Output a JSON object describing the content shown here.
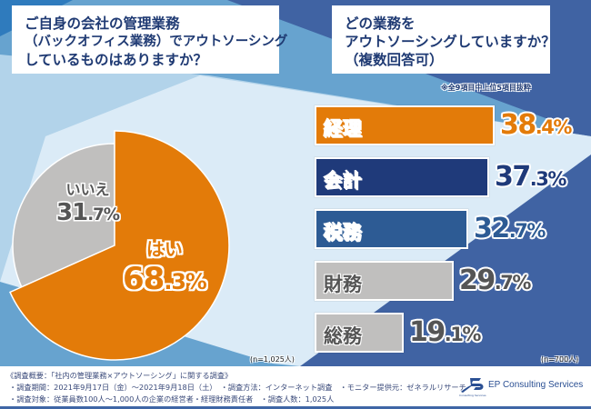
{
  "colors": {
    "orange": "#e37b09",
    "navy": "#1f3a7a",
    "mid_blue": "#2d5b94",
    "gray": "#c0bfbe",
    "gray_text": "#555555",
    "bg_dark": "#4063a3",
    "bg_mid": "#67a3cf",
    "bg_light": "#b2d3ea",
    "bg_pale": "#dbebf7"
  },
  "questions": {
    "left": {
      "lines": [
        "ご自身の会社の管理業務",
        "（バックオフィス業務）でアウトソーシング",
        "しているものはありますか？"
      ]
    },
    "right": {
      "lines": [
        "どの業務を",
        "アウトソーシングしていますか？",
        "（複数回答可）"
      ]
    }
  },
  "note": "※全9項目中上位5項目抜粋",
  "chart_data": [
    {
      "type": "pie",
      "title": "ご自身の会社の管理業務（バックオフィス業務）でアウトソーシングしているものはありますか？",
      "categories": [
        "はい",
        "いいえ"
      ],
      "values": [
        68.3,
        31.7
      ],
      "value_labels": [
        "68.3%",
        "31.7%"
      ],
      "unit": "%",
      "sample": "(n=1,025人)",
      "start": "12 o'clock, clockwise",
      "legend": "none (labels inside slices)"
    },
    {
      "type": "bar",
      "orientation": "horizontal",
      "title": "どの業務をアウトソーシングしていますか？（複数回答可）",
      "categories": [
        "経理",
        "会計",
        "税務",
        "財務",
        "総務"
      ],
      "values": [
        38.4,
        37.3,
        32.7,
        29.7,
        19.1
      ],
      "value_labels": [
        "38.4%",
        "37.3%",
        "32.7%",
        "29.7%",
        "19.1%"
      ],
      "unit": "%",
      "sample": "(n=700人)",
      "note": "※全9項目中上位5項目抜粋",
      "axis": "hidden",
      "grid": false
    }
  ],
  "pie": {
    "yes": {
      "label": "はい",
      "int": "68",
      "dec": ".3%"
    },
    "no": {
      "label": "いいえ",
      "int": "31",
      "dec": ".7%"
    },
    "sample": "(n=1,025人)"
  },
  "bars": {
    "items": [
      {
        "label": "経理",
        "int": "38",
        "dec": ".4%",
        "value": 38.4,
        "fill": "#e37b09",
        "label_color": "#ffffff",
        "value_color": "#e37b09",
        "outline": "white"
      },
      {
        "label": "会計",
        "int": "37",
        "dec": ".3%",
        "value": 37.3,
        "fill": "#1f3a7a",
        "label_color": "#ffffff",
        "value_color": "#1f3a7a",
        "outline": "white"
      },
      {
        "label": "税務",
        "int": "32",
        "dec": ".7%",
        "value": 32.7,
        "fill": "#2d5b94",
        "label_color": "#ffffff",
        "value_color": "#2d5b94",
        "outline": "white"
      },
      {
        "label": "財務",
        "int": "29",
        "dec": ".7%",
        "value": 29.7,
        "fill": "#c0bfbe",
        "label_color": "#555555",
        "value_color": "#555555",
        "outline": "white"
      },
      {
        "label": "総務",
        "int": "19",
        "dec": ".1%",
        "value": 19.1,
        "fill": "#c0bfbe",
        "label_color": "#555555",
        "value_color": "#555555",
        "outline": "white"
      }
    ],
    "sample": "(n=700人)"
  },
  "footer": {
    "title": "《調査概要：「社内の管理業務×アウトソーシング」に関する調査》",
    "line2": "・調査期間：2021年9月17日（金）～2021年9月18日（土）　・調査方法：インターネット調査　・モニター提供元：ゼネラルリサーチ",
    "line3": "・調査対象：従業員数100人～1,000人の企業の経営者・経理財務責任者　・調査人数：1,025人"
  },
  "logo": {
    "name": "EP Consulting Services",
    "sub": "Consulting Services",
    "icon": "ep-logo-icon"
  }
}
